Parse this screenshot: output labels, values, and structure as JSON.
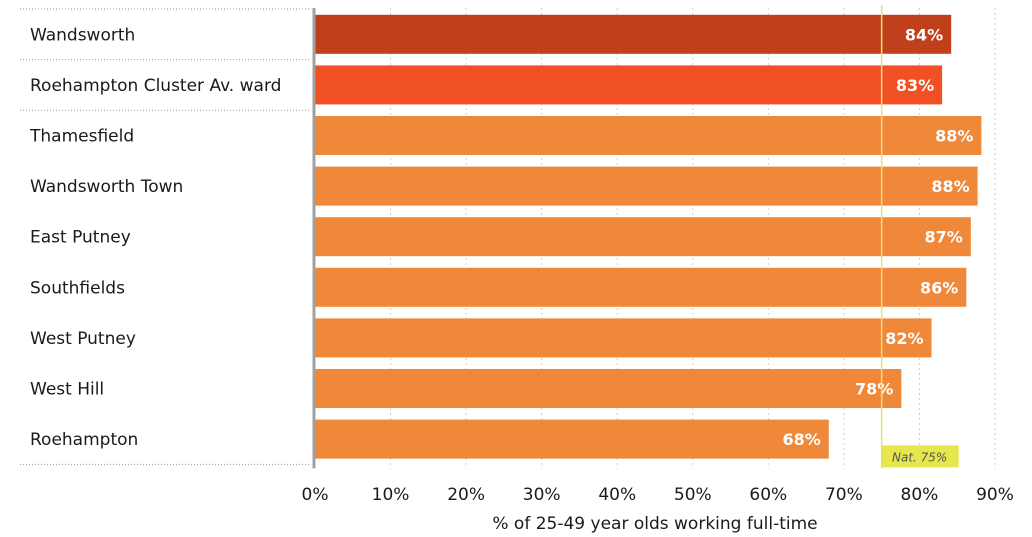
{
  "chart_data": {
    "type": "bar",
    "orientation": "horizontal",
    "categories": [
      "Wandsworth",
      "Roehampton Cluster Av. ward",
      "Thamesfield",
      "Wandsworth Town",
      "East Putney",
      "Southfields",
      "West Putney",
      "West Hill",
      "Roehampton"
    ],
    "values": [
      84.2,
      83.0,
      88.2,
      87.7,
      86.8,
      86.2,
      81.6,
      77.6,
      68.0
    ],
    "value_labels": [
      "84%",
      "83%",
      "88%",
      "88%",
      "87%",
      "86%",
      "82%",
      "78%",
      "68%"
    ],
    "bar_colors": [
      "#c0401b",
      "#f15025",
      "#f0883a",
      "#f0883a",
      "#f0883a",
      "#f0883a",
      "#f0883a",
      "#f0883a",
      "#f0883a"
    ],
    "xlabel": "% of 25-49 year olds working full-time",
    "ylabel": "",
    "title": "",
    "xlim": [
      0,
      90
    ],
    "xticks": [
      0,
      10,
      20,
      30,
      40,
      50,
      60,
      70,
      80,
      90
    ],
    "xtick_labels": [
      "0%",
      "10%",
      "20%",
      "30%",
      "40%",
      "50%",
      "60%",
      "70%",
      "80%",
      "90%"
    ],
    "grid": "vertical dotted",
    "reference_line": {
      "value": 75,
      "label": "Nat. 75%",
      "color": "#e8e070",
      "label_background": "#e6e64d"
    },
    "legend": "none"
  }
}
